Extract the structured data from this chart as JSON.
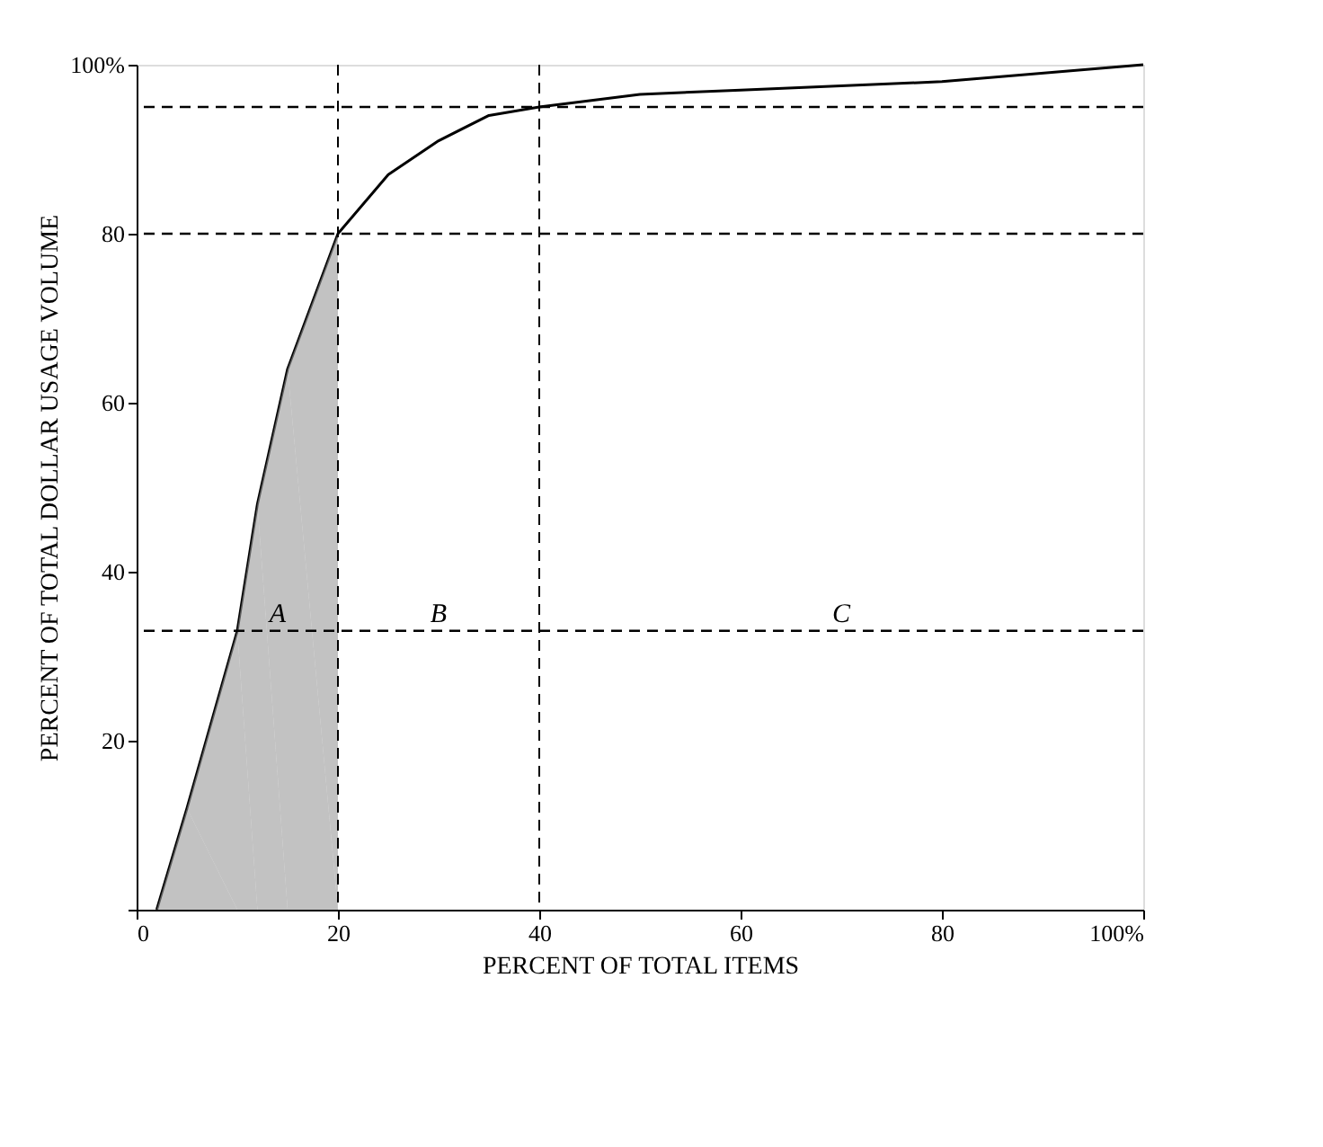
{
  "chart_data": {
    "type": "line",
    "xlabel": "PERCENT OF TOTAL ITEMS",
    "ylabel": "PERCENT OF TOTAL DOLLAR USAGE VOLUME",
    "x": [
      2,
      5,
      10,
      12,
      15,
      20,
      25,
      30,
      35,
      40,
      50,
      60,
      80,
      100
    ],
    "series": [
      {
        "color": "#000000",
        "values": [
          0,
          12,
          33,
          48,
          64,
          80,
          87,
          91,
          94,
          95,
          96.5,
          97,
          98,
          100
        ]
      },
      {
        "type": "area",
        "color": "#999999",
        "x": [
          2,
          5,
          10,
          12,
          15,
          20
        ],
        "values": [
          0,
          12,
          33,
          48,
          64,
          80
        ]
      }
    ],
    "xlim": [
      0,
      100
    ],
    "ylim": [
      0,
      100
    ],
    "xticks": [
      0,
      20,
      40,
      60,
      80,
      {
        "value": 100,
        "label": "100%"
      }
    ],
    "yticks": [
      {
        "value": 0,
        "label": null
      },
      20,
      40,
      60,
      80,
      {
        "value": 100,
        "label": "100%"
      }
    ],
    "ref_lines": [
      {
        "axis": "y",
        "value": 80,
        "line_style": "dashed"
      },
      {
        "axis": "y",
        "value": 95,
        "line_style": "dashed"
      },
      {
        "axis": "x",
        "value": 20,
        "line_style": "dashed"
      },
      {
        "axis": "x",
        "value": 40,
        "line_style": "dashed"
      },
      {
        "axis": "y",
        "value": 33,
        "line_style": "dashed"
      }
    ],
    "annotations": [
      {
        "text": "A",
        "x": 14,
        "y": 33
      },
      {
        "text": "B",
        "x": 30,
        "y": 33
      },
      {
        "text": "C",
        "x": 70,
        "y": 33
      }
    ],
    "grid": false,
    "marker": "none"
  }
}
